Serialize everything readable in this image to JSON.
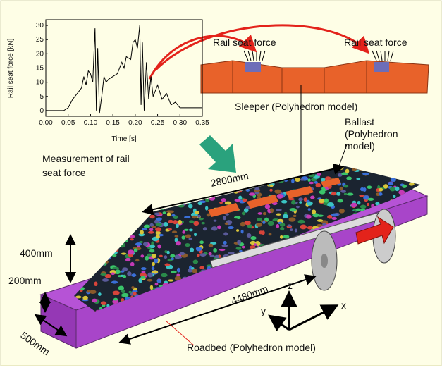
{
  "inset_chart": {
    "type": "line",
    "ylabel": "Rail seat force [kN]",
    "xlabel": "Time [s]",
    "xlim": [
      0,
      0.35
    ],
    "ylim": [
      -2,
      32
    ],
    "xticks": [
      {
        "value": 0,
        "label": "0.00"
      },
      0.05,
      {
        "value": 0.1,
        "label": "0.10"
      },
      0.15,
      {
        "value": 0.2,
        "label": "0.20"
      },
      0.25,
      {
        "value": 0.3,
        "label": "0.30"
      },
      0.35
    ],
    "yticks": [
      0,
      5,
      10,
      15,
      20,
      25,
      30
    ],
    "color": "#000000",
    "x": [
      0,
      0.04,
      0.05,
      0.06,
      0.07,
      0.08,
      0.085,
      0.09,
      0.095,
      0.1,
      0.105,
      0.11,
      0.113,
      0.116,
      0.12,
      0.125,
      0.13,
      0.135,
      0.14,
      0.15,
      0.16,
      0.17,
      0.175,
      0.18,
      0.19,
      0.195,
      0.2,
      0.205,
      0.21,
      0.213,
      0.216,
      0.22,
      0.225,
      0.23,
      0.235,
      0.24,
      0.25,
      0.26,
      0.27,
      0.28,
      0.29,
      0.3,
      0.32,
      0.35
    ],
    "values": [
      0,
      0,
      1,
      4,
      6,
      8,
      12,
      9,
      14,
      13,
      10,
      29,
      0,
      22,
      -1,
      5,
      12,
      10,
      11,
      12,
      13,
      17,
      15,
      19,
      18,
      24,
      25,
      22,
      30,
      2,
      24,
      0,
      17,
      4,
      12,
      5,
      9,
      4,
      6,
      2,
      3,
      1,
      1,
      1
    ]
  },
  "labels": {
    "rail_seat_force_left": "Rail seat force",
    "rail_seat_force_right": "Rail seat force",
    "sleeper": "Sleeper (Polyhedron model)",
    "ballast": [
      "Ballast",
      "(Polyhedron",
      "model)"
    ],
    "measurement": [
      "Measurement of rail",
      "seat force"
    ],
    "sleeper_length": "2800mm",
    "ballast_height": "400mm",
    "roadbed_height": "200mm",
    "roadbed_length": "4480mm",
    "roadbed_width": "500mm",
    "roadbed": "Roadbed (Polyhedron model)",
    "axis_z": "z",
    "axis_y": "y",
    "axis_x": "x"
  }
}
